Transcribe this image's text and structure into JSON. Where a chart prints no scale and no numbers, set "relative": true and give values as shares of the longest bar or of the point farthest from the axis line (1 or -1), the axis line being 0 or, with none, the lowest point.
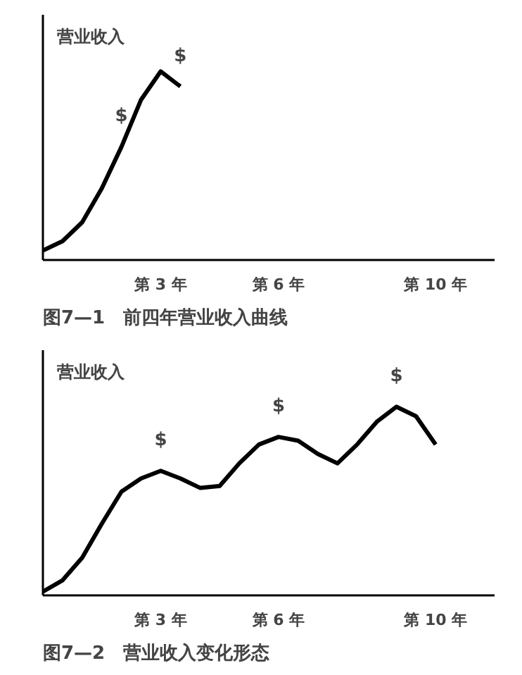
{
  "chart_data": [
    {
      "type": "line",
      "relative": true,
      "title": "图7—1　前四年营业收入曲线",
      "ylabel": "营业收入",
      "color": "#000000",
      "categories": [
        null,
        null,
        null,
        null,
        null,
        null,
        "第 3 年",
        null,
        null,
        null,
        null,
        null,
        "第 6 年",
        null,
        null,
        null,
        null,
        null,
        null,
        null,
        "第 10 年",
        null,
        null,
        null
      ],
      "values": [
        0.05,
        0.1,
        0.2,
        0.38,
        0.6,
        0.85,
        1.0,
        0.92,
        null,
        null,
        null,
        null,
        null,
        null,
        null,
        null,
        null,
        null,
        null,
        null,
        null,
        null,
        null,
        null
      ],
      "annotations": [
        "$",
        "$"
      ]
    },
    {
      "type": "line",
      "relative": true,
      "title": "图7—2　营业收入变化形态",
      "ylabel": "营业收入",
      "color": "#000000",
      "categories": [
        null,
        null,
        null,
        null,
        null,
        null,
        "第 3 年",
        null,
        null,
        null,
        null,
        null,
        "第 6 年",
        null,
        null,
        null,
        null,
        null,
        null,
        null,
        "第 10 年",
        null,
        null,
        null
      ],
      "values": [
        0.02,
        0.08,
        0.2,
        0.38,
        0.55,
        0.62,
        0.66,
        0.62,
        0.57,
        0.58,
        0.7,
        0.8,
        0.84,
        0.82,
        0.75,
        0.7,
        0.8,
        0.92,
        1.0,
        0.95,
        0.8,
        null,
        null,
        null
      ],
      "annotations": [
        "$",
        "$",
        "$"
      ]
    }
  ]
}
